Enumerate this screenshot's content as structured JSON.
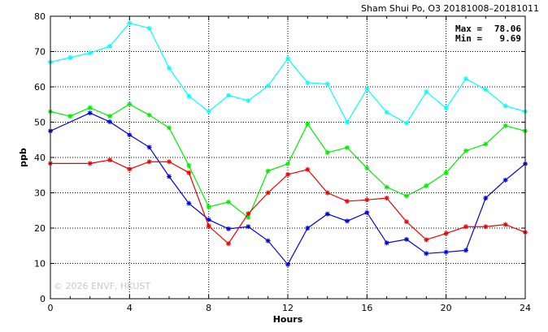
{
  "chart_data": {
    "type": "line",
    "title": "Sham Shui Po, O3 20181008–20181011",
    "xlabel": "Hours",
    "ylabel": "ppb",
    "xlim": [
      0,
      24
    ],
    "ylim": [
      0,
      80
    ],
    "x_ticks": [
      "0",
      "4",
      "8",
      "12",
      "16",
      "20",
      "24"
    ],
    "y_ticks": [
      "0",
      "10",
      "20",
      "30",
      "40",
      "50",
      "60",
      "70",
      "80"
    ],
    "grid": true,
    "x": [
      0,
      1,
      2,
      3,
      4,
      5,
      6,
      7,
      8,
      9,
      10,
      11,
      12,
      13,
      14,
      15,
      16,
      17,
      18,
      19,
      20,
      21,
      22,
      23,
      24
    ],
    "series": [
      {
        "color": "#00ffff",
        "values": [
          67.0,
          68.3,
          69.6,
          71.5,
          78.06,
          76.6,
          65.3,
          57.4,
          53.0,
          57.6,
          56.1,
          60.3,
          68.0,
          61.2,
          60.8,
          50.0,
          59.4,
          52.8,
          49.7,
          58.6,
          54.0,
          62.3,
          59.2,
          54.6,
          53.0
        ]
      },
      {
        "color": "#00ee00",
        "values": [
          53.0,
          51.7,
          54.1,
          51.7,
          55.1,
          52.0,
          48.4,
          37.7,
          26.0,
          27.4,
          23.0,
          36.2,
          38.2,
          49.5,
          41.4,
          42.8,
          37.0,
          31.6,
          29.1,
          32.0,
          35.7,
          41.9,
          43.8,
          49.0,
          47.5
        ]
      },
      {
        "color": "#0000dd",
        "values": [
          47.5,
          null,
          52.6,
          50.1,
          46.4,
          42.9,
          34.6,
          27.0,
          22.4,
          19.8,
          20.4,
          16.4,
          9.69,
          20.0,
          24.0,
          22.0,
          24.4,
          15.8,
          16.8,
          12.8,
          13.2,
          13.7,
          28.5,
          33.6,
          38.2
        ]
      },
      {
        "color": "#ee0000",
        "values": [
          38.3,
          null,
          38.3,
          39.3,
          36.7,
          38.8,
          38.8,
          35.7,
          20.6,
          15.6,
          24.1,
          30.0,
          35.2,
          36.6,
          30.0,
          27.6,
          28.0,
          28.5,
          21.8,
          16.7,
          18.5,
          20.4,
          20.4,
          21.0,
          18.8
        ]
      }
    ],
    "annotation": {
      "max_label": "Max =",
      "max_value": "78.06",
      "min_label": "Min =",
      "min_value": "9.69"
    },
    "watermark": "© 2026 ENVF, HKUST"
  }
}
